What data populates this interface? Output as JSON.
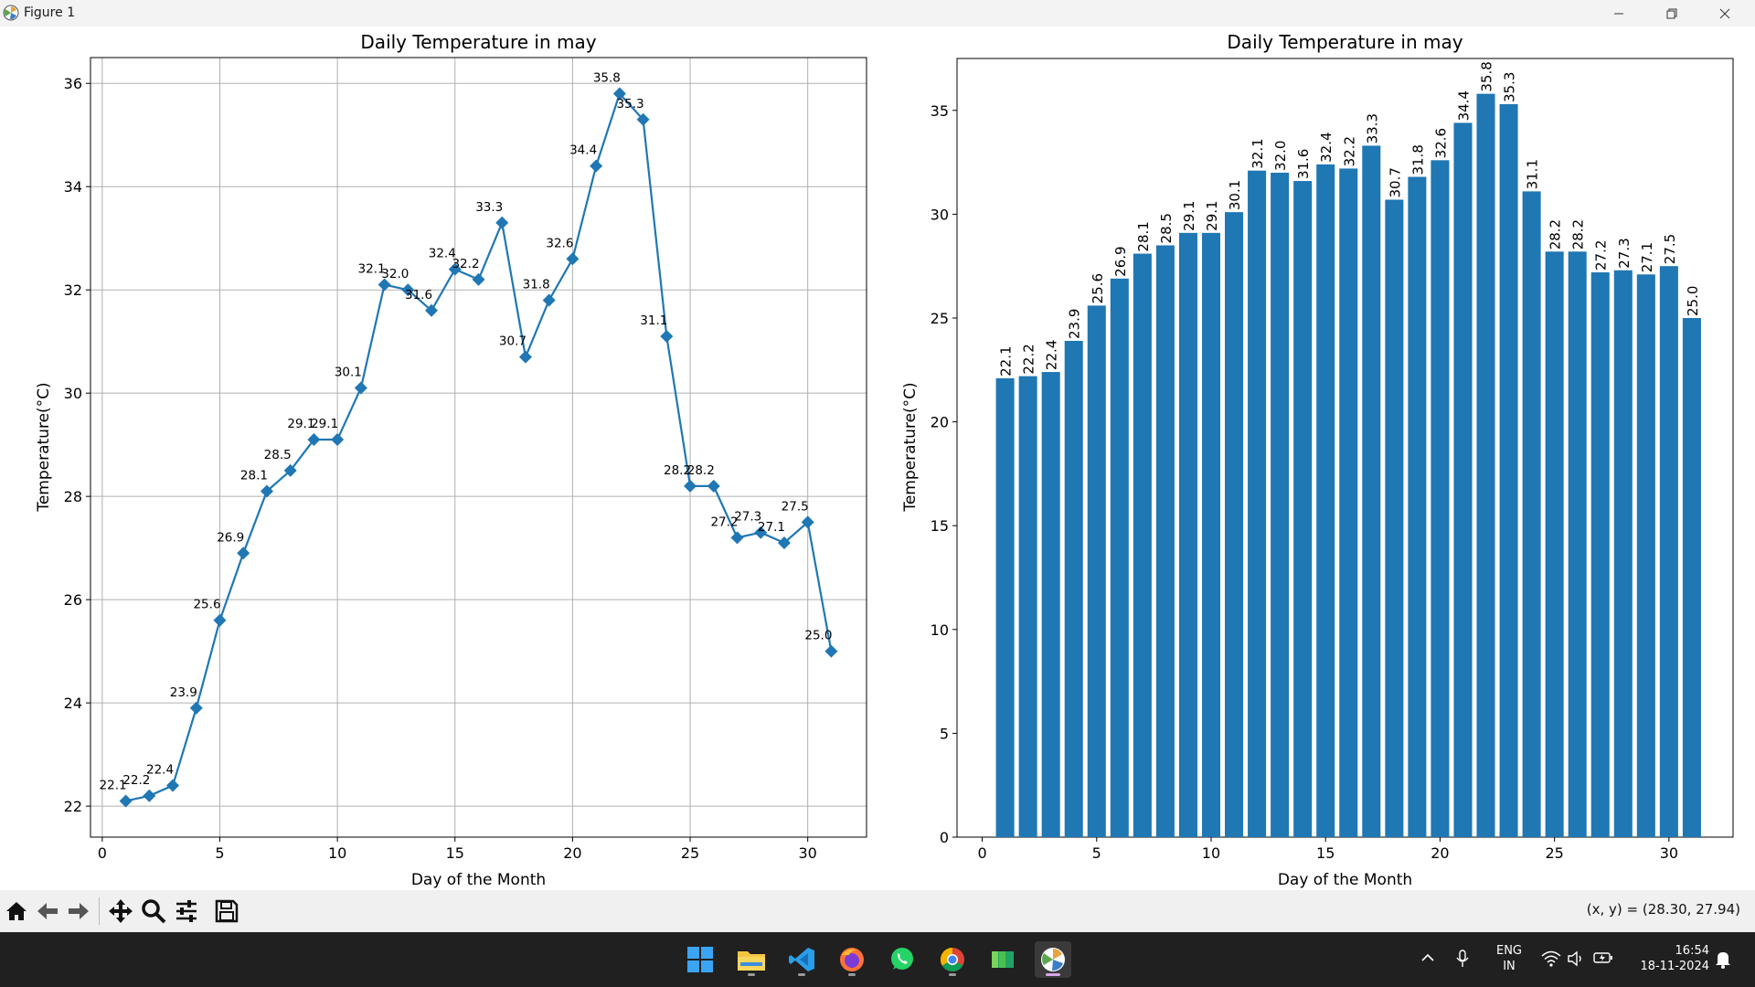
{
  "window": {
    "title": "Figure 1"
  },
  "charts": {
    "line": {
      "title": "Daily Temperature in may",
      "xlabel": "Day of the Month",
      "ylabel": "Temperature(°C)",
      "xticks": [
        0,
        5,
        10,
        15,
        20,
        25,
        30
      ],
      "yticks": [
        22,
        24,
        26,
        28,
        30,
        32,
        34,
        36
      ]
    },
    "bar": {
      "title": "Daily Temperature in may",
      "xlabel": "Day of the Month",
      "ylabel": "Temperature(°C)",
      "xticks": [
        0,
        5,
        10,
        15,
        20,
        25,
        30
      ],
      "yticks": [
        0,
        5,
        10,
        15,
        20,
        25,
        30,
        35
      ]
    }
  },
  "chart_data": [
    {
      "type": "line",
      "title": "Daily Temperature in may",
      "xlabel": "Day of the Month",
      "ylabel": "Temperature(°C)",
      "x": [
        1,
        2,
        3,
        4,
        5,
        6,
        7,
        8,
        9,
        10,
        11,
        12,
        13,
        14,
        15,
        16,
        17,
        18,
        19,
        20,
        21,
        22,
        23,
        24,
        25,
        26,
        27,
        28,
        29,
        30,
        31
      ],
      "values": [
        22.1,
        22.2,
        22.4,
        23.9,
        25.6,
        26.9,
        28.1,
        28.5,
        29.1,
        29.1,
        30.1,
        32.1,
        32.0,
        31.6,
        32.4,
        32.2,
        33.3,
        30.7,
        31.8,
        32.6,
        34.4,
        35.8,
        35.3,
        31.1,
        28.2,
        28.2,
        27.2,
        27.3,
        27.1,
        27.5,
        25.0
      ],
      "xlim": [
        -0.5,
        32.5
      ],
      "ylim": [
        21.4,
        36.5
      ],
      "marker": "diamond",
      "grid": true,
      "color": "#1f77b4"
    },
    {
      "type": "bar",
      "title": "Daily Temperature in may",
      "xlabel": "Day of the Month",
      "ylabel": "Temperature(°C)",
      "x": [
        1,
        2,
        3,
        4,
        5,
        6,
        7,
        8,
        9,
        10,
        11,
        12,
        13,
        14,
        15,
        16,
        17,
        18,
        19,
        20,
        21,
        22,
        23,
        24,
        25,
        26,
        27,
        28,
        29,
        30,
        31
      ],
      "values": [
        22.1,
        22.2,
        22.4,
        23.9,
        25.6,
        26.9,
        28.1,
        28.5,
        29.1,
        29.1,
        30.1,
        32.1,
        32.0,
        31.6,
        32.4,
        32.2,
        33.3,
        30.7,
        31.8,
        32.6,
        34.4,
        35.8,
        35.3,
        31.1,
        28.2,
        28.2,
        27.2,
        27.3,
        27.1,
        27.5,
        25.0
      ],
      "xlim": [
        -1.1,
        32.8
      ],
      "ylim": [
        0,
        37.5
      ],
      "grid": false,
      "color": "#1f77b4"
    }
  ],
  "toolbar": {
    "coords": "(x, y) = (28.30, 27.94)",
    "buttons": [
      "home-icon",
      "back-arrow-icon",
      "forward-arrow-icon",
      "pan-icon",
      "zoom-icon",
      "subplots-config-icon",
      "save-icon"
    ]
  },
  "taskbar": {
    "apps": [
      "windows-start-icon",
      "file-explorer-icon",
      "vscode-icon",
      "firefox-icon",
      "whatsapp-icon",
      "chrome-icon",
      "excel-icon",
      "matplotlib-figure-icon"
    ],
    "lang_top": "ENG",
    "lang_bottom": "IN",
    "time": "16:54",
    "date": "18-11-2024"
  },
  "colors": {
    "series": "#1f77b4",
    "taskbar": "#202020",
    "toolbar": "#f0f0f0"
  }
}
